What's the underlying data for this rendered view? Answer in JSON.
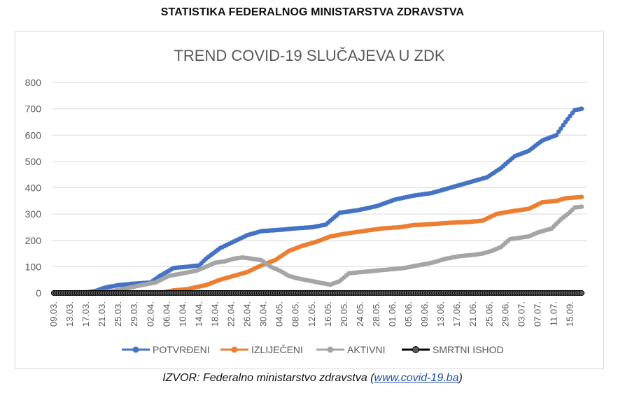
{
  "header": {
    "title": "STATISTIKA FEDERALNOG MINISTARSTVA ZDRAVSTVA"
  },
  "source": {
    "prefix": "IZVOR: Federalno ministarstvo zdravstva (",
    "link_text": "www.covid-19.ba",
    "suffix": ")"
  },
  "chart_data": {
    "type": "line",
    "title": "TREND COVID-19 SLUČAJEVA U ZDK",
    "xlabel": "",
    "ylabel": "",
    "ylim": [
      0,
      800
    ],
    "yticks": [
      0,
      100,
      200,
      300,
      400,
      500,
      600,
      700,
      800
    ],
    "grid": true,
    "legend_position": "bottom",
    "x_tick_labels": [
      "09.03.",
      "13.03.",
      "17.03.",
      "21.03.",
      "25.03.",
      "29.03.",
      "02.04.",
      "06.04.",
      "10.04.",
      "14.04.",
      "18.04.",
      "22.04.",
      "26.04.",
      "30.04.",
      "04.05.",
      "08.05.",
      "12.05.",
      "16.05.",
      "20.05.",
      "24.05.",
      "28.05.",
      "01.06.",
      "05.06.",
      "09.06.",
      "13.06.",
      "17.06.",
      "21.06.",
      "25.06.",
      "29.06.",
      "03.07.",
      "07.07.",
      "11.07.",
      "15.09."
    ],
    "series": [
      {
        "name": "POTVRĐENI",
        "color": "#4472c4",
        "keyframes": [
          [
            0,
            0
          ],
          [
            12,
            0
          ],
          [
            18,
            8
          ],
          [
            22,
            20
          ],
          [
            28,
            30
          ],
          [
            34,
            35
          ],
          [
            42,
            40
          ],
          [
            46,
            65
          ],
          [
            52,
            95
          ],
          [
            58,
            100
          ],
          [
            63,
            105
          ],
          [
            66,
            130
          ],
          [
            72,
            170
          ],
          [
            78,
            195
          ],
          [
            84,
            220
          ],
          [
            90,
            235
          ],
          [
            98,
            240
          ],
          [
            104,
            245
          ],
          [
            112,
            250
          ],
          [
            118,
            260
          ],
          [
            124,
            305
          ],
          [
            132,
            315
          ],
          [
            140,
            330
          ],
          [
            148,
            355
          ],
          [
            156,
            370
          ],
          [
            164,
            380
          ],
          [
            172,
            400
          ],
          [
            180,
            420
          ],
          [
            188,
            440
          ],
          [
            194,
            475
          ],
          [
            200,
            520
          ],
          [
            206,
            540
          ],
          [
            212,
            580
          ],
          [
            218,
            600
          ],
          [
            222,
            650
          ],
          [
            226,
            695
          ],
          [
            229,
            700
          ]
        ]
      },
      {
        "name": "IZLIJEČENI",
        "color": "#ed7d31",
        "keyframes": [
          [
            0,
            0
          ],
          [
            46,
            0
          ],
          [
            52,
            10
          ],
          [
            58,
            15
          ],
          [
            66,
            30
          ],
          [
            72,
            50
          ],
          [
            78,
            65
          ],
          [
            84,
            80
          ],
          [
            90,
            105
          ],
          [
            96,
            125
          ],
          [
            102,
            160
          ],
          [
            108,
            180
          ],
          [
            114,
            195
          ],
          [
            120,
            215
          ],
          [
            126,
            225
          ],
          [
            134,
            235
          ],
          [
            142,
            245
          ],
          [
            150,
            250
          ],
          [
            156,
            258
          ],
          [
            164,
            262
          ],
          [
            172,
            267
          ],
          [
            180,
            270
          ],
          [
            186,
            275
          ],
          [
            192,
            300
          ],
          [
            198,
            310
          ],
          [
            206,
            320
          ],
          [
            212,
            345
          ],
          [
            218,
            350
          ],
          [
            222,
            360
          ],
          [
            229,
            365
          ]
        ]
      },
      {
        "name": "AKTIVNI",
        "color": "#a5a5a5",
        "keyframes": [
          [
            0,
            0
          ],
          [
            24,
            5
          ],
          [
            30,
            15
          ],
          [
            38,
            30
          ],
          [
            44,
            40
          ],
          [
            50,
            65
          ],
          [
            56,
            75
          ],
          [
            62,
            85
          ],
          [
            66,
            100
          ],
          [
            70,
            115
          ],
          [
            74,
            120
          ],
          [
            78,
            130
          ],
          [
            82,
            135
          ],
          [
            86,
            130
          ],
          [
            90,
            125
          ],
          [
            94,
            100
          ],
          [
            98,
            85
          ],
          [
            102,
            65
          ],
          [
            106,
            55
          ],
          [
            112,
            45
          ],
          [
            116,
            38
          ],
          [
            120,
            32
          ],
          [
            124,
            45
          ],
          [
            128,
            75
          ],
          [
            134,
            80
          ],
          [
            140,
            85
          ],
          [
            146,
            90
          ],
          [
            152,
            95
          ],
          [
            158,
            105
          ],
          [
            164,
            115
          ],
          [
            170,
            130
          ],
          [
            176,
            140
          ],
          [
            182,
            145
          ],
          [
            186,
            150
          ],
          [
            190,
            160
          ],
          [
            194,
            175
          ],
          [
            198,
            205
          ],
          [
            202,
            210
          ],
          [
            206,
            215
          ],
          [
            210,
            230
          ],
          [
            216,
            245
          ],
          [
            220,
            280
          ],
          [
            223,
            300
          ],
          [
            226,
            325
          ],
          [
            229,
            328
          ]
        ]
      },
      {
        "name": "SMRTNI ISHOD",
        "color": "#000000",
        "keyframes": [
          [
            0,
            0
          ],
          [
            229,
            0
          ]
        ]
      }
    ]
  }
}
